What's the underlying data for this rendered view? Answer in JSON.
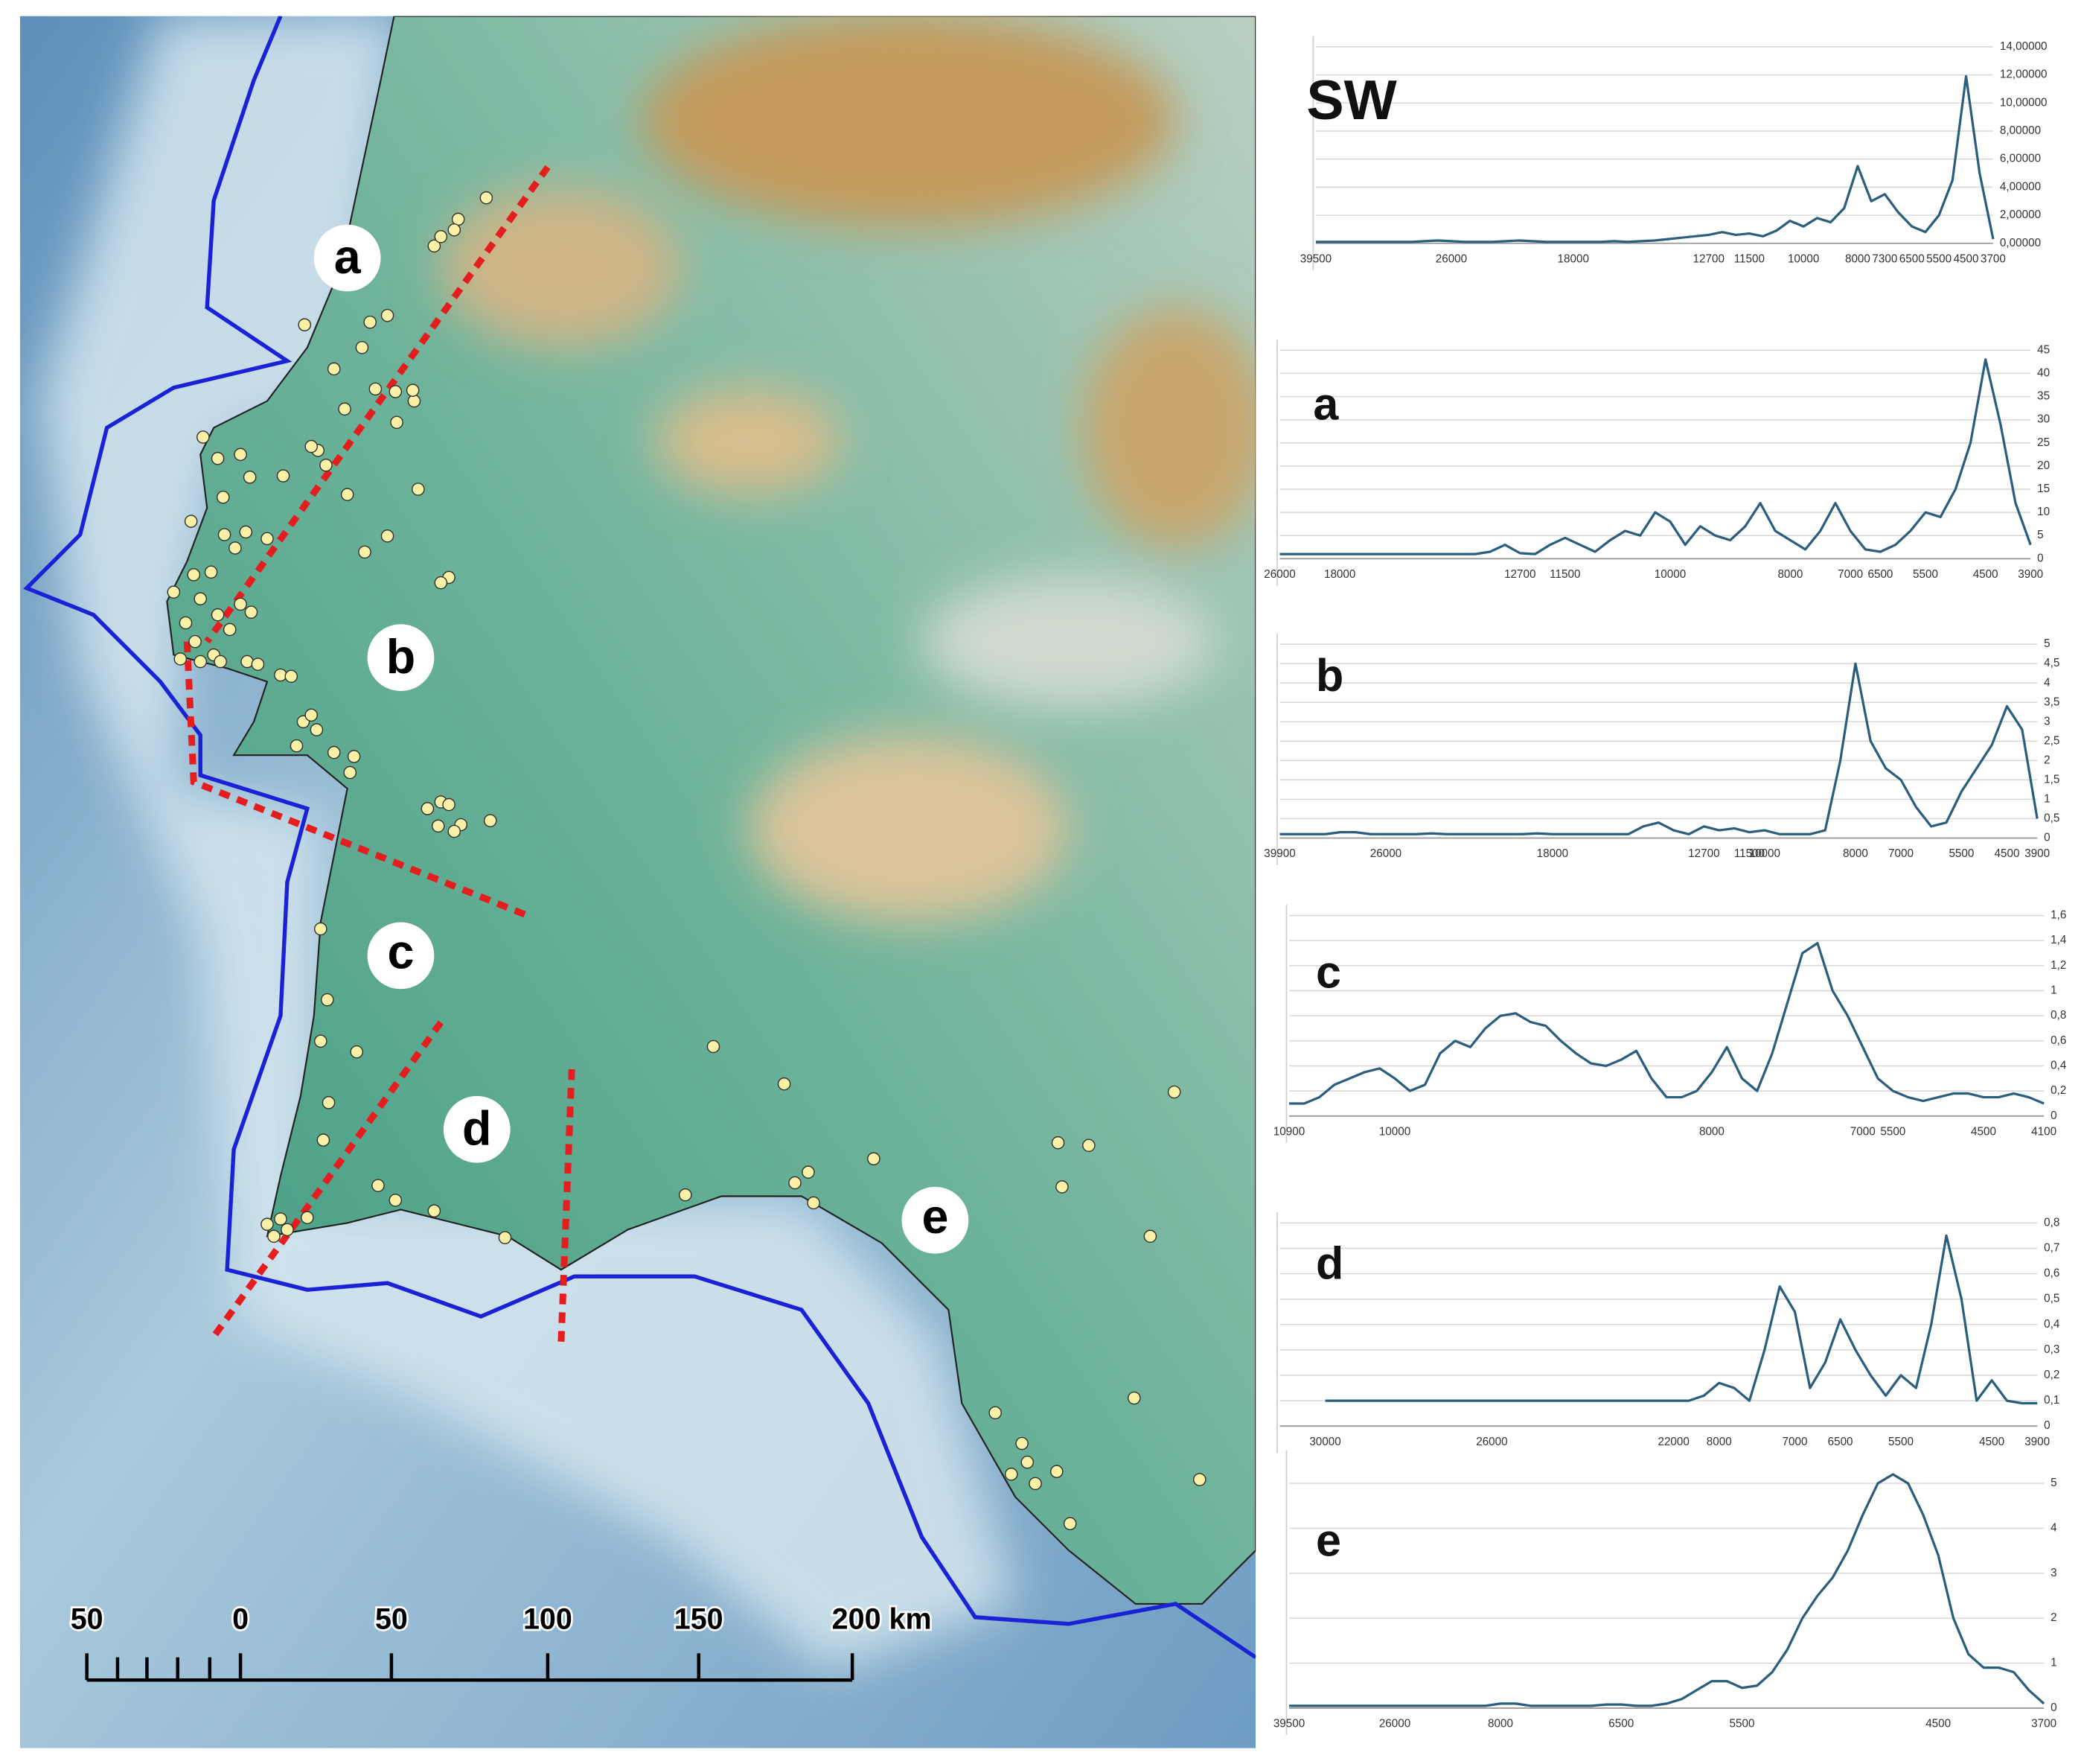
{
  "map": {
    "region_labels": [
      "a",
      "b",
      "c",
      "d",
      "e"
    ],
    "scale_labels": [
      "50",
      "0",
      "50",
      "100",
      "150",
      "200 km"
    ]
  },
  "chart_data": [
    {
      "type": "line",
      "title": "SW",
      "color": "#2b5d7d",
      "grid": true,
      "ylim": [
        0,
        14
      ],
      "yticks": [
        {
          "value": 0,
          "label": "0,00000"
        },
        {
          "value": 2,
          "label": "2,00000"
        },
        {
          "value": 4,
          "label": "4,00000"
        },
        {
          "value": 6,
          "label": "6,00000"
        },
        {
          "value": 8,
          "label": "8,00000"
        },
        {
          "value": 10,
          "label": "10,00000"
        },
        {
          "value": 12,
          "label": "12,00000"
        },
        {
          "value": 14,
          "label": "14,00000"
        }
      ],
      "categories": [
        "39500",
        null,
        null,
        null,
        null,
        null,
        null,
        null,
        null,
        null,
        "26000",
        null,
        null,
        null,
        null,
        null,
        null,
        null,
        null,
        "18000",
        null,
        null,
        null,
        null,
        null,
        null,
        null,
        null,
        null,
        "12700",
        null,
        null,
        "11500",
        null,
        null,
        null,
        "10000",
        null,
        null,
        null,
        "8000",
        null,
        "7300",
        null,
        "6500",
        null,
        "5500",
        null,
        "4500",
        null,
        "3700"
      ],
      "values": [
        0.1,
        0.1,
        0.1,
        0.1,
        0.1,
        0.1,
        0.1,
        0.1,
        0.15,
        0.2,
        0.15,
        0.1,
        0.1,
        0.1,
        0.15,
        0.2,
        0.15,
        0.1,
        0.1,
        0.1,
        0.1,
        0.1,
        0.15,
        0.1,
        0.15,
        0.2,
        0.3,
        0.4,
        0.5,
        0.6,
        0.8,
        0.6,
        0.7,
        0.5,
        0.9,
        1.6,
        1.2,
        1.8,
        1.5,
        2.5,
        5.5,
        3.0,
        3.5,
        2.2,
        1.2,
        0.8,
        2.0,
        4.5,
        11.9,
        5.0,
        0.3
      ]
    },
    {
      "type": "line",
      "title": "a",
      "color": "#2b5d7d",
      "grid": true,
      "ylim": [
        0,
        45
      ],
      "yticks": [
        0,
        5,
        10,
        15,
        20,
        25,
        30,
        35,
        40,
        45
      ],
      "categories": [
        "26000",
        null,
        null,
        null,
        "18000",
        null,
        null,
        null,
        null,
        null,
        null,
        null,
        null,
        null,
        null,
        null,
        "12700",
        null,
        null,
        "11500",
        null,
        null,
        null,
        null,
        null,
        null,
        "10000",
        null,
        null,
        null,
        null,
        null,
        null,
        null,
        "8000",
        null,
        null,
        null,
        "7000",
        null,
        "6500",
        null,
        null,
        "5500",
        null,
        null,
        null,
        "4500",
        null,
        null,
        "3900"
      ],
      "values": [
        1,
        1,
        1,
        1,
        1,
        1,
        1,
        1,
        1,
        1,
        1,
        1,
        1,
        1,
        1.5,
        3,
        1.2,
        1,
        3,
        4.5,
        3,
        1.5,
        4,
        6,
        5,
        10,
        8,
        3,
        7,
        5,
        4,
        7,
        12,
        6,
        4,
        2,
        6,
        12,
        6,
        2,
        1.5,
        3,
        6,
        10,
        9,
        15,
        25,
        43,
        29,
        12,
        3
      ]
    },
    {
      "type": "line",
      "title": "b",
      "color": "#2b5d7d",
      "grid": true,
      "ylim": [
        0,
        5
      ],
      "yticks": [
        0,
        {
          "value": 0.5,
          "label": "0,5"
        },
        1,
        {
          "value": 1.5,
          "label": "1,5"
        },
        2,
        {
          "value": 2.5,
          "label": "2,5"
        },
        3,
        {
          "value": 3.5,
          "label": "3,5"
        },
        4,
        {
          "value": 4.5,
          "label": "4,5"
        },
        5
      ],
      "categories": [
        "39900",
        null,
        null,
        null,
        null,
        null,
        null,
        "26000",
        null,
        null,
        null,
        null,
        null,
        null,
        null,
        null,
        null,
        null,
        "18000",
        null,
        null,
        null,
        null,
        null,
        null,
        null,
        null,
        null,
        "12700",
        null,
        null,
        "11500",
        "10000",
        null,
        null,
        null,
        null,
        null,
        "8000",
        null,
        null,
        "7000",
        null,
        null,
        null,
        "5500",
        null,
        null,
        "4500",
        null,
        "3900"
      ],
      "values": [
        0.1,
        0.1,
        0.1,
        0.1,
        0.15,
        0.15,
        0.1,
        0.1,
        0.1,
        0.1,
        0.12,
        0.1,
        0.1,
        0.1,
        0.1,
        0.1,
        0.1,
        0.12,
        0.1,
        0.1,
        0.1,
        0.1,
        0.1,
        0.1,
        0.3,
        0.4,
        0.2,
        0.1,
        0.3,
        0.2,
        0.25,
        0.15,
        0.2,
        0.1,
        0.1,
        0.1,
        0.2,
        2.0,
        4.5,
        2.5,
        1.8,
        1.5,
        0.8,
        0.3,
        0.4,
        1.2,
        1.8,
        2.4,
        3.4,
        2.8,
        0.5
      ]
    },
    {
      "type": "line",
      "title": "c",
      "color": "#2b5d7d",
      "grid": true,
      "ylim": [
        0,
        1.6
      ],
      "yticks": [
        0,
        {
          "value": 0.2,
          "label": "0,2"
        },
        {
          "value": 0.4,
          "label": "0,4"
        },
        {
          "value": 0.6,
          "label": "0,6"
        },
        {
          "value": 0.8,
          "label": "0,8"
        },
        1,
        {
          "value": 1.2,
          "label": "1,2"
        },
        {
          "value": 1.4,
          "label": "1,4"
        },
        {
          "value": 1.6,
          "label": "1,6"
        }
      ],
      "categories": [
        "10900",
        null,
        null,
        null,
        null,
        null,
        null,
        "10000",
        null,
        null,
        null,
        null,
        null,
        null,
        null,
        null,
        null,
        null,
        null,
        null,
        null,
        null,
        null,
        null,
        null,
        null,
        null,
        null,
        "8000",
        null,
        null,
        null,
        null,
        null,
        null,
        null,
        null,
        null,
        "7000",
        null,
        "5500",
        null,
        null,
        null,
        null,
        null,
        "4500",
        null,
        null,
        null,
        "4100"
      ],
      "values": [
        0.1,
        0.1,
        0.15,
        0.25,
        0.3,
        0.35,
        0.38,
        0.3,
        0.2,
        0.25,
        0.5,
        0.6,
        0.55,
        0.7,
        0.8,
        0.82,
        0.75,
        0.72,
        0.6,
        0.5,
        0.42,
        0.4,
        0.45,
        0.52,
        0.3,
        0.15,
        0.15,
        0.2,
        0.35,
        0.55,
        0.3,
        0.2,
        0.5,
        0.9,
        1.3,
        1.38,
        1.0,
        0.8,
        0.55,
        0.3,
        0.2,
        0.15,
        0.12,
        0.15,
        0.18,
        0.18,
        0.15,
        0.15,
        0.18,
        0.15,
        0.1
      ]
    },
    {
      "type": "line",
      "title": "d",
      "color": "#2b5d7d",
      "grid": true,
      "ylim": [
        0,
        0.8
      ],
      "yticks": [
        0,
        {
          "value": 0.1,
          "label": "0,1"
        },
        {
          "value": 0.2,
          "label": "0,2"
        },
        {
          "value": 0.3,
          "label": "0,3"
        },
        {
          "value": 0.4,
          "label": "0,4"
        },
        {
          "value": 0.5,
          "label": "0,5"
        },
        {
          "value": 0.6,
          "label": "0,6"
        },
        {
          "value": 0.7,
          "label": "0,7"
        },
        {
          "value": 0.8,
          "label": "0,8"
        }
      ],
      "categories": [
        null,
        null,
        null,
        "30000",
        null,
        null,
        null,
        null,
        null,
        null,
        null,
        null,
        null,
        null,
        "26000",
        null,
        null,
        null,
        null,
        null,
        null,
        null,
        null,
        null,
        null,
        null,
        "22000",
        null,
        null,
        "8000",
        null,
        null,
        null,
        null,
        "7000",
        null,
        null,
        "6500",
        null,
        null,
        null,
        "5500",
        null,
        null,
        null,
        null,
        null,
        "4500",
        null,
        null,
        "3900"
      ],
      "values": [
        null,
        null,
        null,
        0.1,
        0.1,
        0.1,
        0.1,
        0.1,
        0.1,
        0.1,
        0.1,
        0.1,
        0.1,
        0.1,
        0.1,
        0.1,
        0.1,
        0.1,
        0.1,
        0.1,
        0.1,
        0.1,
        0.1,
        0.1,
        0.1,
        0.1,
        0.1,
        0.1,
        0.12,
        0.17,
        0.15,
        0.1,
        0.3,
        0.55,
        0.45,
        0.15,
        0.25,
        0.42,
        0.3,
        0.2,
        0.12,
        0.2,
        0.15,
        0.4,
        0.75,
        0.5,
        0.1,
        0.18,
        0.1,
        0.09,
        0.09
      ]
    },
    {
      "type": "line",
      "title": "e",
      "color": "#2b5d7d",
      "grid": true,
      "ylim": [
        0,
        5.5
      ],
      "yticks": [
        0,
        1,
        2,
        3,
        4,
        5
      ],
      "categories": [
        "39500",
        null,
        null,
        null,
        null,
        null,
        null,
        "26000",
        null,
        null,
        null,
        null,
        null,
        null,
        "8000",
        null,
        null,
        null,
        null,
        null,
        null,
        null,
        "6500",
        null,
        null,
        null,
        null,
        null,
        null,
        null,
        "5500",
        null,
        null,
        null,
        null,
        null,
        null,
        null,
        null,
        null,
        null,
        null,
        null,
        "4500",
        null,
        null,
        null,
        null,
        null,
        null,
        "3700"
      ],
      "values": [
        0.05,
        0.05,
        0.05,
        0.05,
        0.05,
        0.05,
        0.05,
        0.05,
        0.05,
        0.05,
        0.05,
        0.05,
        0.05,
        0.05,
        0.1,
        0.1,
        0.05,
        0.05,
        0.05,
        0.05,
        0.05,
        0.08,
        0.08,
        0.05,
        0.05,
        0.1,
        0.2,
        0.4,
        0.6,
        0.6,
        0.45,
        0.5,
        0.8,
        1.3,
        2.0,
        2.5,
        2.9,
        3.5,
        4.3,
        5.0,
        5.2,
        5.0,
        4.3,
        3.4,
        2.0,
        1.2,
        0.9,
        0.9,
        0.8,
        0.4,
        0.1
      ]
    }
  ]
}
